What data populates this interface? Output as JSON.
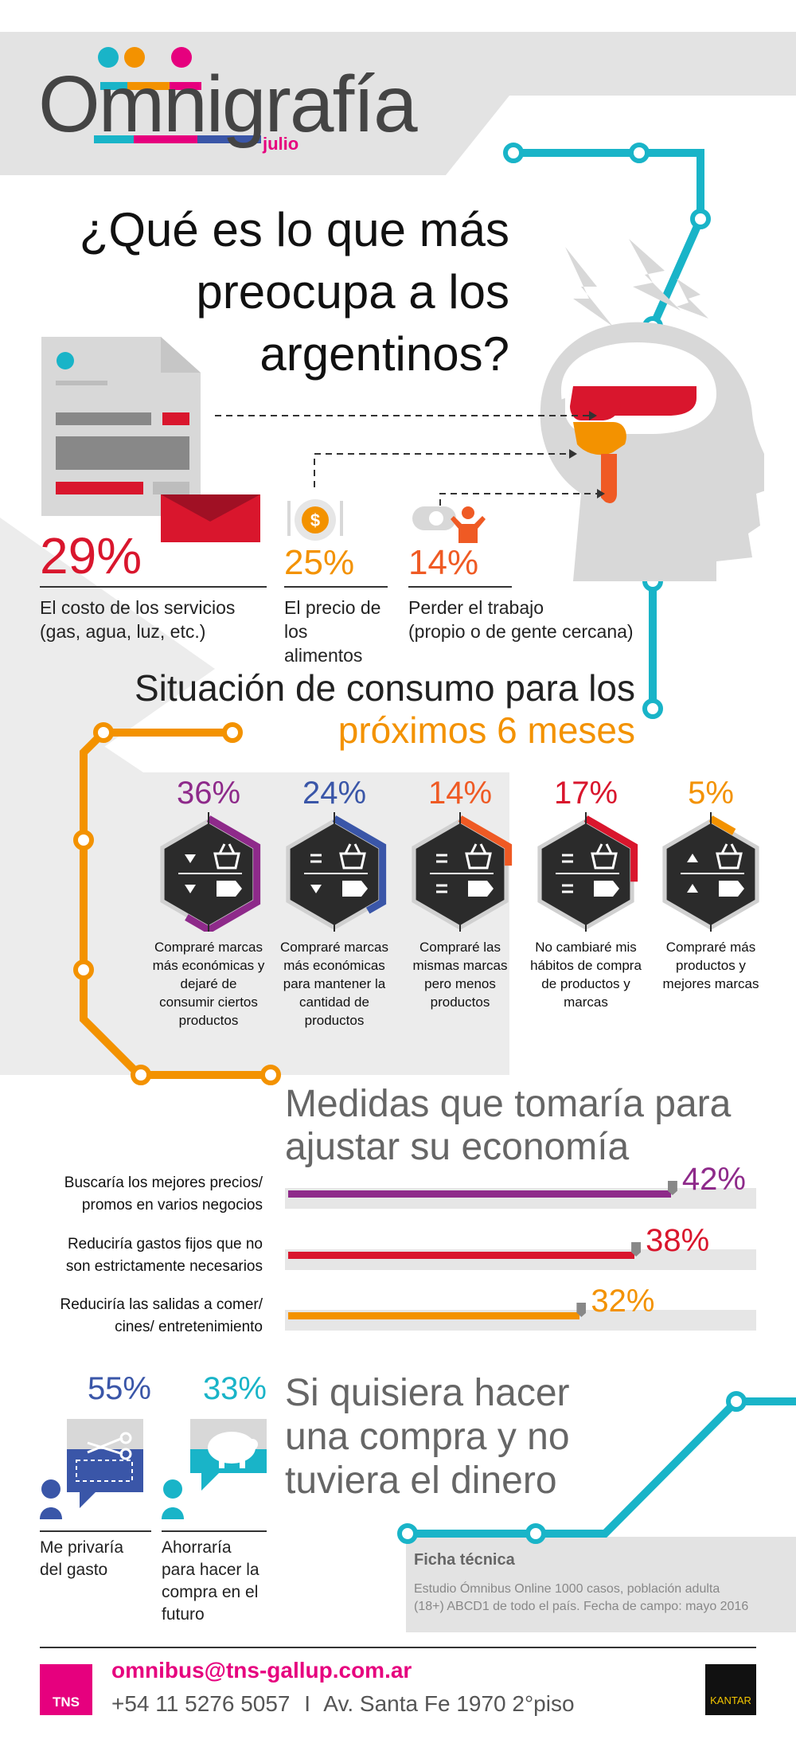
{
  "header": {
    "logo_text": "Omnigrafía",
    "month": "julio"
  },
  "title": {
    "line1": "¿Qué es lo que más",
    "line2": "preocupa a los",
    "line3": "argentinos?"
  },
  "concerns": [
    {
      "pct": "29%",
      "line1": "El costo de los servicios",
      "line2": "(gas, agua, luz, etc.)"
    },
    {
      "pct": "25%",
      "line1": "El precio de",
      "line2": "los alimentos"
    },
    {
      "pct": "14%",
      "line1": "Perder el trabajo",
      "line2": "(propio o de gente cercana)"
    }
  ],
  "consumo": {
    "title_line1": "Situación de consumo para los",
    "title_line2": "próximos 6 meses",
    "items": [
      {
        "pct": "36%",
        "label": "Compraré marcas más económicas y dejaré de consumir ciertos productos",
        "color": "#8e2a8a",
        "share": 0.36
      },
      {
        "pct": "24%",
        "label": "Compraré marcas más económicas para mantener la cantidad de productos",
        "color": "#3a56a8",
        "share": 0.24
      },
      {
        "pct": "14%",
        "label": "Compraré las mismas marcas pero menos productos",
        "color": "#ef5a24",
        "share": 0.14
      },
      {
        "pct": "17%",
        "label": "No cambiaré mis hábitos de compra de productos y marcas",
        "color": "#d9162d",
        "share": 0.17
      },
      {
        "pct": "5%",
        "label": "Compraré más productos y mejores marcas",
        "color": "#f39200",
        "share": 0.05
      }
    ]
  },
  "medidas": {
    "title_line1": "Medidas que tomaría para",
    "title_line2": "ajustar su economía",
    "items": [
      {
        "line1": "Buscaría los mejores precios/",
        "line2": "promos en varios negocios",
        "pct": "42%",
        "value": 42,
        "color": "#8e2a8a"
      },
      {
        "line1": "Reduciría gastos fijos que no",
        "line2": "son estrictamente necesarios",
        "pct": "38%",
        "value": 38,
        "color": "#d9162d"
      },
      {
        "line1": "Reduciría las salidas a comer/",
        "line2": "cines/ entretenimiento",
        "pct": "32%",
        "value": 32,
        "color": "#f39200"
      }
    ]
  },
  "compra": {
    "title_line1": "Si quisiera hacer",
    "title_line2": "una compra y no",
    "title_line3": "tuviera el dinero",
    "items": [
      {
        "pct": "55%",
        "line1": "Me privaría",
        "line2": "del gasto",
        "color": "#3a56a8"
      },
      {
        "pct": "33%",
        "line1": "Ahorraría",
        "line2": "para hacer la",
        "line3": "compra en el",
        "line4": "futuro",
        "color": "#19b4c8"
      }
    ]
  },
  "ficha": {
    "title": "Ficha técnica",
    "line1": "Estudio Ómnibus Online 1000 casos, población adulta",
    "line2": "(18+) ABCD1 de todo el país. Fecha de campo: mayo 2016"
  },
  "footer": {
    "email": "omnibus@tns-gallup.com.ar",
    "phone": "+54 11 5276 5057",
    "separator": "I",
    "address": "Av. Santa Fe 1970 2°piso",
    "tns": "TNS",
    "kantar": "KANTAR"
  },
  "colors": {
    "cyan": "#19b4c8",
    "orange": "#f39200",
    "red": "#d9162d",
    "purple": "#8e2a8a",
    "blue": "#3a56a8",
    "magenta": "#e6007e",
    "gray_bg": "#e3e3e3"
  }
}
